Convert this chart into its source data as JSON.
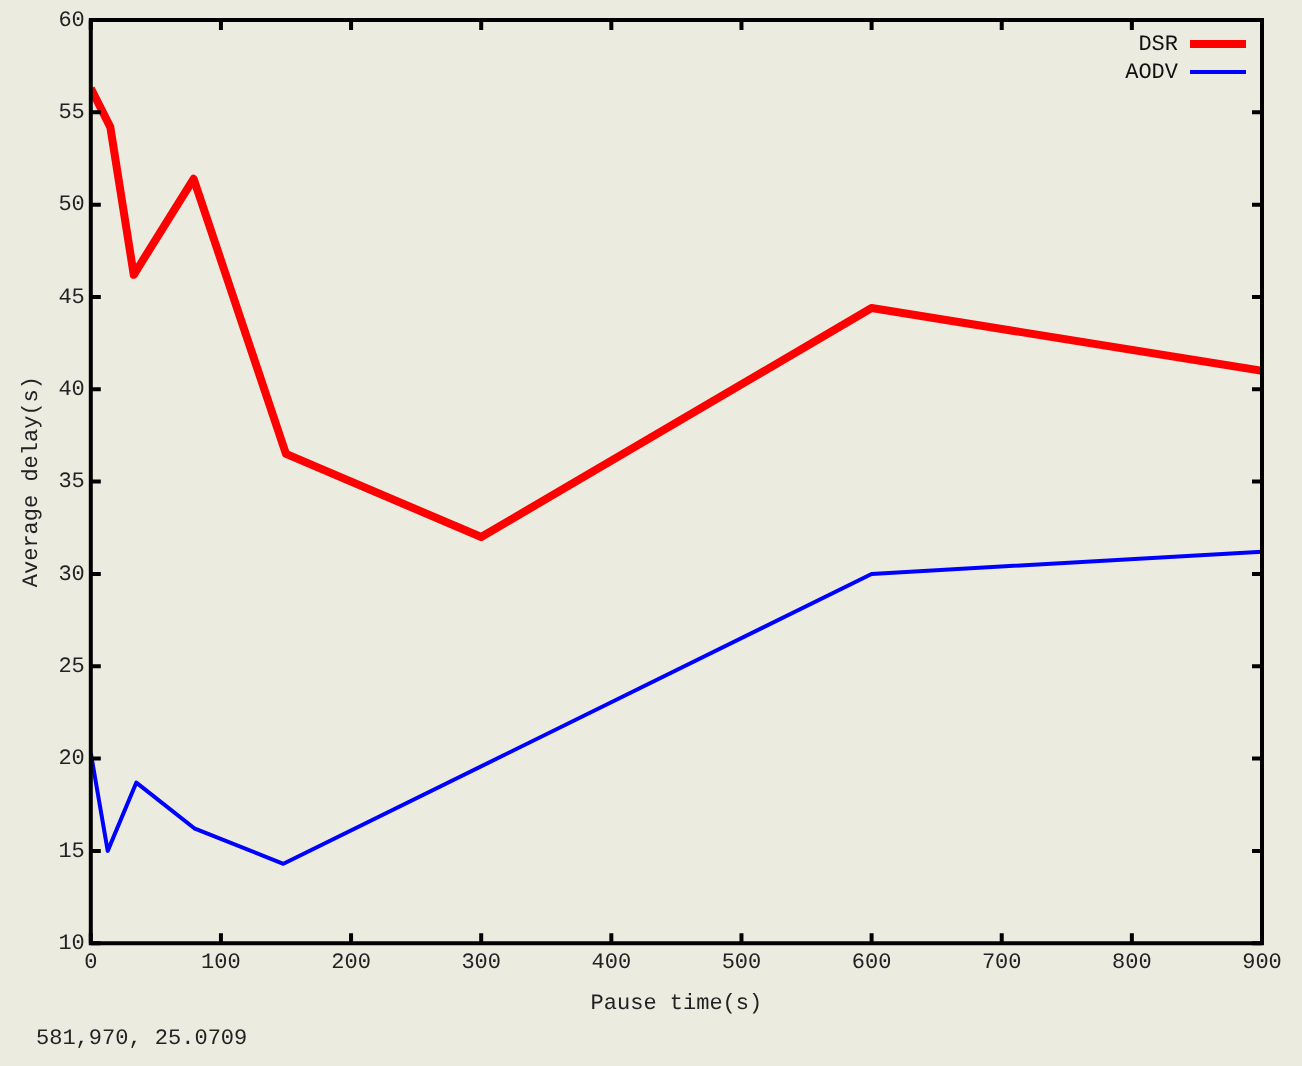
{
  "chart_data": {
    "type": "line",
    "xlabel": "Pause time(s)",
    "ylabel": "Average delay(s)",
    "xlim": [
      0,
      900
    ],
    "xticks": [
      0,
      100,
      200,
      300,
      400,
      500,
      600,
      700,
      800,
      900
    ],
    "ylim": [
      10,
      60
    ],
    "yticks": [
      10,
      15,
      20,
      25,
      30,
      35,
      40,
      45,
      50,
      55,
      60
    ],
    "grid": false,
    "legend": "top right",
    "marker": "none",
    "line_style": "solid",
    "series": [
      {
        "name": "DSR",
        "color": "#ff0000",
        "x": [
          0,
          15,
          33,
          79,
          150,
          300,
          600,
          900
        ],
        "values": [
          56.3,
          54.2,
          46.2,
          51.4,
          36.5,
          32,
          44.4,
          41
        ]
      },
      {
        "name": "AODV",
        "color": "#0000ff",
        "x": [
          0,
          13,
          35,
          80,
          148,
          600,
          900
        ],
        "values": [
          20.3,
          15,
          18.7,
          16.2,
          14.3,
          30,
          31.2
        ]
      }
    ],
    "annotations": [
      "581,970,  25.0709"
    ]
  }
}
